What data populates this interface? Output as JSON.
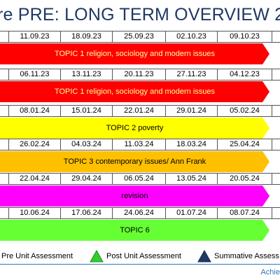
{
  "colors": {
    "title": "#1f3864",
    "red": "#ff0000",
    "yellow": "#ffff00",
    "orange": "#ffc000",
    "magenta": "#ff00ff",
    "green": "#66ff33",
    "red_text": "#ffff99",
    "footer": "#2e75b6"
  },
  "header": {
    "title": "re PRE: LONG TERM OVERVIEW 2"
  },
  "blocks": [
    {
      "dates": [
        "11.09.23",
        "18.09.23",
        "25.09.23",
        "02.10.23",
        "09.10.23"
      ],
      "topic": "TOPIC 1 religion, sociology and modern issues",
      "color": "red"
    },
    {
      "dates": [
        "06.11.23",
        "13.11.23",
        "20.11.23",
        "27.11.23",
        "04.12.23"
      ],
      "topic": "TOPIC 1 religion, sociology and modern issues",
      "color": "red"
    },
    {
      "dates": [
        "08.01.24",
        "15.01.24",
        "22.01.24",
        "29.01.24",
        "05.02.24"
      ],
      "topic": "TOPIC 2 poverty",
      "color": "yellow"
    },
    {
      "dates": [
        "26.02.24",
        "04.03.24",
        "11.03.24",
        "18.03.24",
        "25.04.24"
      ],
      "topic": "TOPIC 3 contemporary issues/ Ann Frank",
      "color": "orange"
    },
    {
      "dates": [
        "22.04.24",
        "29.04.24",
        "06.05.24",
        "13.05.24",
        "20.05.24"
      ],
      "topic": "revision",
      "color": "magenta"
    },
    {
      "dates": [
        "10.06.24",
        "17.06.24",
        "24.06.24",
        "01.07.24",
        "08.07.24"
      ],
      "topic": "TOPIC 6",
      "color": "green"
    }
  ],
  "legend": {
    "pre": {
      "label": "Pre Unit Assessment",
      "icon": "pre-unit-icon"
    },
    "post": {
      "label": "Post Unit Assessment",
      "icon": "green-triangle-icon",
      "color": "#33cc33"
    },
    "summative": {
      "label": "Summative Assess",
      "icon": "navy-triangle-icon",
      "color": "#1f3864"
    }
  },
  "footer": {
    "text": "Achie"
  }
}
